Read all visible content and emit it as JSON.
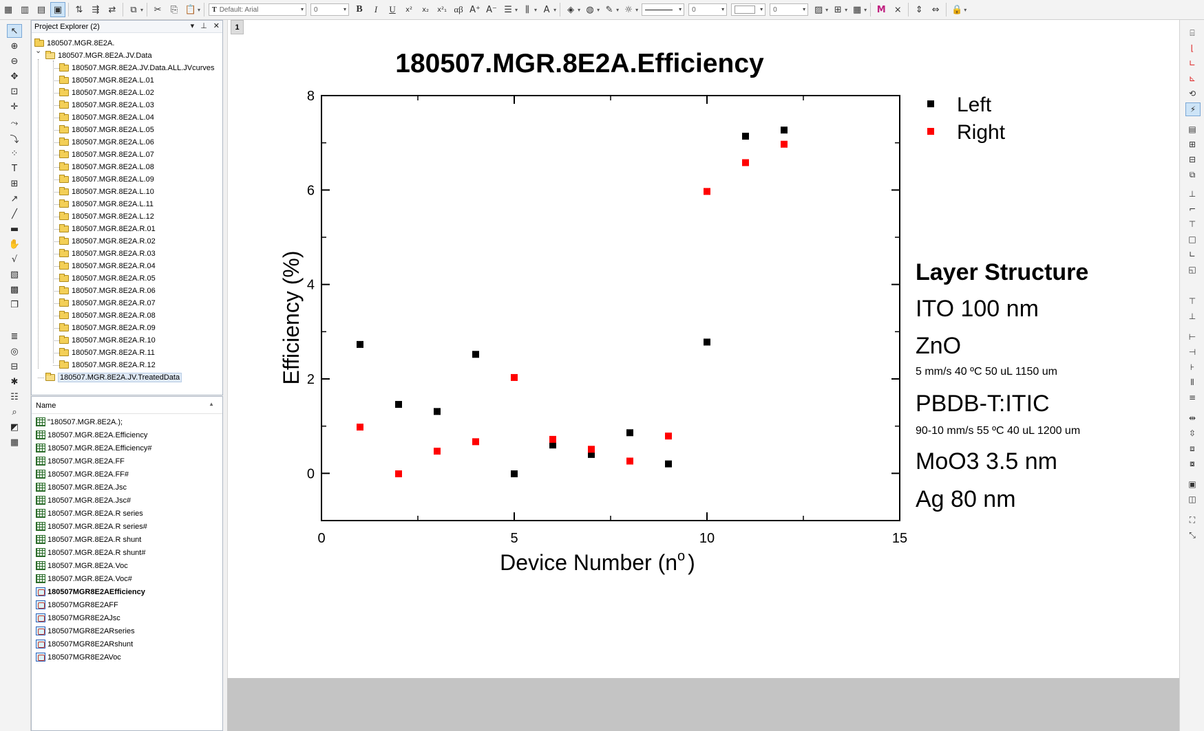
{
  "toolbar": {
    "font_name": "Default: Arial",
    "font_size": "0",
    "line_width": "0",
    "fill_value": "0",
    "greek": "αβ"
  },
  "explorer": {
    "title": "Project Explorer (2)",
    "controls": [
      "▾",
      "⊥",
      "✕"
    ],
    "root": "180507.MGR.8E2A.",
    "data_folder": "180507.MGR.8E2A.JV.Data",
    "children": [
      "180507.MGR.8E2A.JV.Data.ALL.JVcurves",
      "180507.MGR.8E2A.L.01",
      "180507.MGR.8E2A.L.02",
      "180507.MGR.8E2A.L.03",
      "180507.MGR.8E2A.L.04",
      "180507.MGR.8E2A.L.05",
      "180507.MGR.8E2A.L.06",
      "180507.MGR.8E2A.L.07",
      "180507.MGR.8E2A.L.08",
      "180507.MGR.8E2A.L.09",
      "180507.MGR.8E2A.L.10",
      "180507.MGR.8E2A.L.11",
      "180507.MGR.8E2A.L.12",
      "180507.MGR.8E2A.R.01",
      "180507.MGR.8E2A.R.02",
      "180507.MGR.8E2A.R.03",
      "180507.MGR.8E2A.R.04",
      "180507.MGR.8E2A.R.05",
      "180507.MGR.8E2A.R.06",
      "180507.MGR.8E2A.R.07",
      "180507.MGR.8E2A.R.08",
      "180507.MGR.8E2A.R.09",
      "180507.MGR.8E2A.R.10",
      "180507.MGR.8E2A.R.11",
      "180507.MGR.8E2A.R.12"
    ],
    "treated_folder": "180507.MGR.8E2A.JV.TreatedData"
  },
  "objects": {
    "header": "Name",
    "items": [
      {
        "name": "\"180507.MGR.8E2A.);",
        "type": "book"
      },
      {
        "name": "180507.MGR.8E2A.Efficiency",
        "type": "book"
      },
      {
        "name": "180507.MGR.8E2A.Efficiency#",
        "type": "book"
      },
      {
        "name": "180507.MGR.8E2A.FF",
        "type": "book"
      },
      {
        "name": "180507.MGR.8E2A.FF#",
        "type": "book"
      },
      {
        "name": "180507.MGR.8E2A.Jsc",
        "type": "book"
      },
      {
        "name": "180507.MGR.8E2A.Jsc#",
        "type": "book"
      },
      {
        "name": "180507.MGR.8E2A.R series",
        "type": "book"
      },
      {
        "name": "180507.MGR.8E2A.R series#",
        "type": "book"
      },
      {
        "name": "180507.MGR.8E2A.R shunt",
        "type": "book"
      },
      {
        "name": "180507.MGR.8E2A.R shunt#",
        "type": "book"
      },
      {
        "name": "180507.MGR.8E2A.Voc",
        "type": "book"
      },
      {
        "name": "180507.MGR.8E2A.Voc#",
        "type": "book"
      },
      {
        "name": "180507MGR8E2AEfficiency",
        "type": "graph",
        "bold": true
      },
      {
        "name": "180507MGR8E2AFF",
        "type": "graph"
      },
      {
        "name": "180507MGR8E2AJsc",
        "type": "graph"
      },
      {
        "name": "180507MGR8E2ARseries",
        "type": "graph"
      },
      {
        "name": "180507MGR8E2ARshunt",
        "type": "graph"
      },
      {
        "name": "180507MGR8E2AVoc",
        "type": "graph"
      }
    ]
  },
  "workspace": {
    "page_number": "1"
  },
  "colors": {
    "left": "#000000",
    "right": "#ff0000",
    "selection": "#cde4f7"
  },
  "chart_data": {
    "type": "scatter",
    "title": "180507.MGR.8E2A.Efficiency",
    "xlabel_main": "Device Number (n",
    "xlabel_sup": "o",
    "xlabel_end": ")",
    "ylabel": "Efficiency (%)",
    "xlim": [
      0,
      15
    ],
    "ylim": [
      -1,
      8
    ],
    "xticks": [
      0,
      5,
      10,
      15
    ],
    "yticks": [
      0,
      2,
      4,
      6,
      8
    ],
    "xtick_labels": [
      "0",
      "5",
      "10",
      "15"
    ],
    "ytick_labels": [
      "0",
      "2",
      "4",
      "6",
      "8"
    ],
    "legend_position": "top-right outside",
    "series": [
      {
        "name": "Left",
        "color": "#000000",
        "x": [
          1,
          2,
          3,
          4,
          5,
          6,
          7,
          8,
          9,
          10,
          11,
          12
        ],
        "y": [
          2.73,
          1.46,
          1.31,
          2.52,
          -0.01,
          0.6,
          0.4,
          0.86,
          0.2,
          2.78,
          7.14,
          7.27
        ]
      },
      {
        "name": "Right",
        "color": "#ff0000",
        "x": [
          1,
          2,
          3,
          4,
          5,
          6,
          7,
          8,
          9,
          10,
          11,
          12
        ],
        "y": [
          0.98,
          -0.01,
          0.47,
          0.67,
          2.03,
          0.72,
          0.51,
          0.26,
          0.79,
          5.97,
          6.58,
          6.97
        ]
      }
    ]
  },
  "layer_structure": {
    "heading": "Layer Structure",
    "ito": "ITO 100 nm",
    "zno": "ZnO",
    "zno_detail": "5 mm/s 40 ºC 50 uL 1150 um",
    "active": "PBDB-T:ITIC",
    "active_detail": "90-10 mm/s 55 ºC 40 uL 1200 um",
    "moo3": "MoO3 3.5 nm",
    "ag": "Ag 80 nm"
  }
}
